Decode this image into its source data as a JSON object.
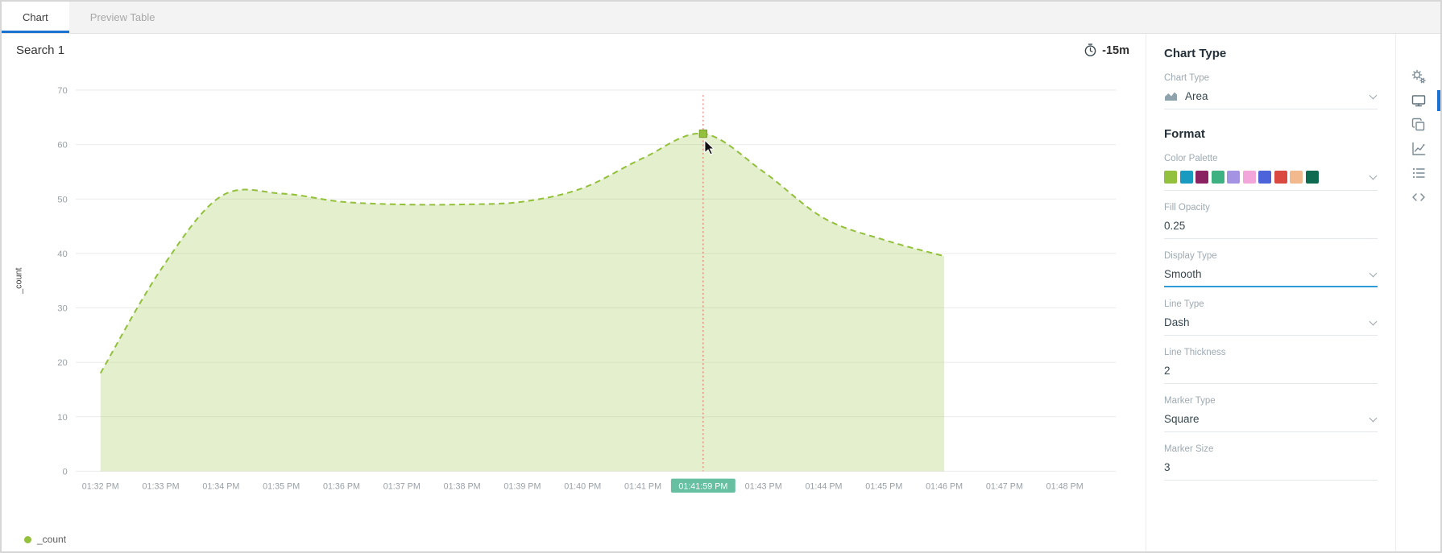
{
  "tabs": [
    {
      "label": "Chart",
      "active": true
    },
    {
      "label": "Preview Table",
      "active": false
    }
  ],
  "header": {
    "title": "Search 1",
    "time_range": "-15m"
  },
  "chart_data": {
    "type": "area",
    "series": [
      {
        "name": "_count",
        "values": [
          18,
          37,
          50.5,
          51,
          49.5,
          49,
          49,
          49.5,
          52,
          57.5,
          62,
          55,
          46.5,
          42.5,
          39.5
        ]
      }
    ],
    "x": [
      "01:32 PM",
      "01:33 PM",
      "01:34 PM",
      "01:35 PM",
      "01:36 PM",
      "01:37 PM",
      "01:38 PM",
      "01:39 PM",
      "01:40 PM",
      "01:41 PM",
      "01:42 PM",
      "01:43 PM",
      "01:44 PM",
      "01:45 PM",
      "01:46 PM"
    ],
    "x_axis_labels": [
      "01:32 PM",
      "01:33 PM",
      "01:34 PM",
      "01:35 PM",
      "01:36 PM",
      "01:37 PM",
      "01:38 PM",
      "01:39 PM",
      "01:40 PM",
      "01:41 PM",
      "01:41:59 PM",
      "01:43 PM",
      "01:44 PM",
      "01:45 PM",
      "01:46 PM",
      "01:47 PM",
      "01:48 PM"
    ],
    "highlight_index": 10,
    "highlight_label": "01:41:59 PM",
    "marker": {
      "label": "01:41:59 PM",
      "value": 62
    },
    "ylabel": "_count",
    "ylim": [
      0,
      70
    ],
    "y_ticks": [
      0,
      10,
      20,
      30,
      40,
      50,
      60,
      70
    ],
    "line_color": "#94c13d",
    "marker_border": "#76a028",
    "fill_opacity": 0.25,
    "line_style": "dash",
    "display_type": "smooth",
    "highlight_color": "#67bfa1",
    "hover_line_color": "#e0685f",
    "grid": true,
    "legend_position": "bottom-left"
  },
  "legend": {
    "label": "_count"
  },
  "panel": {
    "section1_title": "Chart Type",
    "chart_type": {
      "label": "Chart Type",
      "value": "Area"
    },
    "section2_title": "Format",
    "color_palette": {
      "label": "Color Palette",
      "colors": [
        "#94c13d",
        "#189bbf",
        "#8a2160",
        "#3eb182",
        "#a492e3",
        "#f2a6da",
        "#4d63d9",
        "#d9493f",
        "#f2b98e",
        "#0e6b50"
      ]
    },
    "fill_opacity": {
      "label": "Fill Opacity",
      "value": "0.25"
    },
    "display_type": {
      "label": "Display Type",
      "value": "Smooth"
    },
    "line_type": {
      "label": "Line Type",
      "value": "Dash"
    },
    "line_thickness": {
      "label": "Line Thickness",
      "value": "2"
    },
    "marker_type": {
      "label": "Marker Type",
      "value": "Square"
    },
    "marker_size": {
      "label": "Marker Size",
      "value": "3"
    }
  },
  "right_toolbar": {
    "icons": [
      "settings-icon",
      "display-icon",
      "copy-icon",
      "chart-icon",
      "list-icon",
      "code-icon"
    ],
    "active_icon": "display-icon"
  }
}
